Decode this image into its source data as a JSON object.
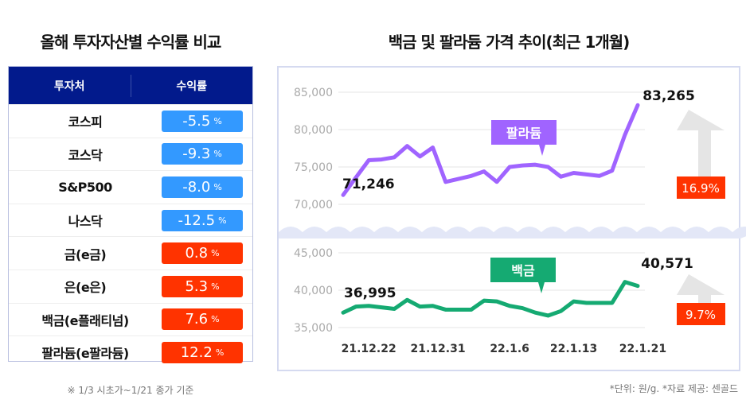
{
  "left": {
    "title": "올해 투자자산별 수익률 비교",
    "headers": [
      "투자처",
      "수익률"
    ],
    "rows": [
      {
        "name": "코스피",
        "value": "-5.5",
        "unit": "%",
        "color": "#3399ff"
      },
      {
        "name": "코스닥",
        "value": "-9.3",
        "unit": "%",
        "color": "#3399ff"
      },
      {
        "name": "S&P500",
        "value": "-8.0",
        "unit": "%",
        "color": "#3399ff"
      },
      {
        "name": "나스닥",
        "value": "-12.5",
        "unit": "%",
        "color": "#3399ff"
      },
      {
        "name": "금(e금)",
        "value": "0.8",
        "unit": "%",
        "color": "#ff3300"
      },
      {
        "name": "은(e은)",
        "value": "5.3",
        "unit": "%",
        "color": "#ff3300"
      },
      {
        "name": "백금(e플래티넘)",
        "value": "7.6",
        "unit": "%",
        "color": "#ff3300"
      },
      {
        "name": "팔라듐(e팔라듐)",
        "value": "12.2",
        "unit": "%",
        "color": "#ff3300"
      }
    ],
    "footnote": "※ 1/3 시초가~1/21 종가 기준"
  },
  "right": {
    "title": "백금 및 팔라듐 가격 추이(최근 1개월)",
    "footnote": "*단위: 원/g.   *자료 제공: 센골드"
  },
  "chart_data": {
    "type": "line",
    "x_tick_labels": [
      "21.12.22",
      "21.12.31",
      "22.1.6",
      "22.1.13",
      "22.1.21"
    ],
    "series": [
      {
        "name": "팔라듐",
        "color": "#a064ff",
        "yticks": [
          "85,000",
          "80,000",
          "75,000",
          "70,000"
        ],
        "ylim": [
          70000,
          85000
        ],
        "values": [
          71246,
          73600,
          75900,
          76000,
          76300,
          77800,
          76400,
          77600,
          73000,
          73400,
          73800,
          74400,
          73000,
          75000,
          75200,
          75300,
          75000,
          73700,
          74200,
          74000,
          73800,
          74500,
          79300,
          83265
        ],
        "start_label": "71,246",
        "end_label": "83,265",
        "change": "16.9%"
      },
      {
        "name": "백금",
        "color": "#15aa72",
        "yticks": [
          "45,000",
          "40,000",
          "35,000"
        ],
        "ylim": [
          35000,
          45000
        ],
        "values": [
          36995,
          37800,
          37900,
          37700,
          37500,
          38700,
          37800,
          37900,
          37400,
          37400,
          37400,
          38600,
          38500,
          37900,
          37600,
          37000,
          36600,
          37200,
          38500,
          38300,
          38300,
          38300,
          41100,
          40571
        ],
        "start_label": "36,995",
        "end_label": "40,571",
        "change": "9.7%"
      }
    ],
    "change_color": "#ff3300"
  }
}
